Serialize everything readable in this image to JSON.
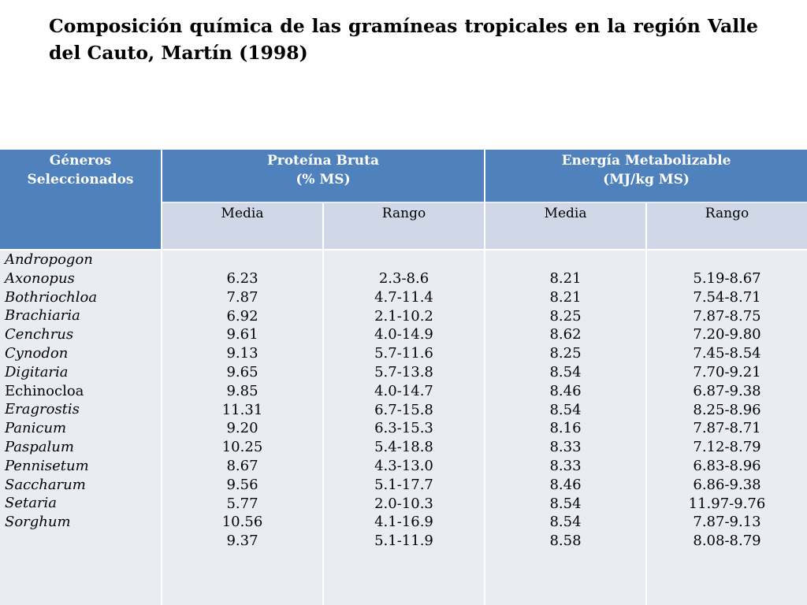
{
  "title": "Composición química de las gramíneas tropicales en la región Valle del Cauto, Martín (1998)",
  "table": {
    "header": {
      "generos": "Géneros\nSeleccionados",
      "proteina": "Proteína Bruta\n(% MS)",
      "energia": "Energía Metabolizable\n(MJ/kg MS)"
    },
    "subheaders": [
      "Media",
      "Rango",
      "Media",
      "Rango"
    ],
    "generos": [
      "Andropogon",
      "Axonopus",
      "Bothriochloa",
      "Brachiaria",
      "Cenchrus",
      "Cynodon",
      "Digitaria",
      "Echinocloa",
      "Eragrostis",
      "Panicum",
      "Paspalum",
      "Pennisetum",
      "Saccharum",
      "Setaria",
      "Sorghum"
    ],
    "pb_media": [
      "6.23",
      "7.87",
      "6.92",
      "9.61",
      "9.13",
      "9.65",
      "9.85",
      "11.31",
      "9.20",
      "10.25",
      "8.67",
      "9.56",
      "5.77",
      "10.56",
      "9.37"
    ],
    "pb_rango": [
      "2.3-8.6",
      "4.7-11.4",
      "2.1-10.2",
      "4.0-14.9",
      "5.7-11.6",
      "5.7-13.8",
      "4.0-14.7",
      "6.7-15.8",
      "6.3-15.3",
      "5.4-18.8",
      "4.3-13.0",
      "5.1-17.7",
      "2.0-10.3",
      "4.1-16.9",
      "5.1-11.9"
    ],
    "em_media": [
      "8.21",
      "8.21",
      "8.25",
      "8.62",
      "8.25",
      "8.54",
      "8.46",
      "8.54",
      "8.16",
      "8.33",
      "8.33",
      "8.46",
      "8.54",
      "8.54",
      "8.58"
    ],
    "em_rango": [
      "5.19-8.67",
      "7.54-8.71",
      "7.87-8.75",
      "7.20-9.80",
      "7.45-8.54",
      "7.70-9.21",
      "6.87-9.38",
      "8.25-8.96",
      "7.87-8.71",
      "7.12-8.79",
      "6.83-8.96",
      "6.86-9.38",
      "11.97-9.76",
      "7.87-9.13",
      "8.08-8.79"
    ]
  },
  "colors": {
    "header_bg": "#4f81bd",
    "subheader_bg": "#d0d8e8",
    "body_bg": "#e9edf3"
  }
}
